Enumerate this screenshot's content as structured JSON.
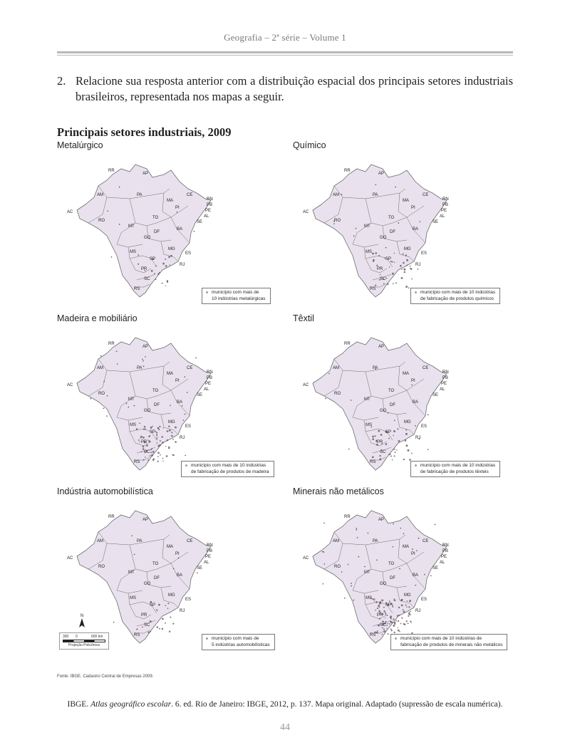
{
  "header": {
    "title": "Geografia – 2ª série – Volume 1"
  },
  "question": {
    "number": "2.",
    "text": "Relacione sua resposta anterior com a distribuição espacial dos principais setores industriais brasileiros, representada nos mapas a seguir."
  },
  "section_title": "Principais setores industriais, 2009",
  "maps": [
    {
      "title": "Metalúrgico",
      "legend_line1": "município com mais de",
      "legend_line2": "10 indústrias metalúrgicas",
      "density": 1
    },
    {
      "title": "Químico",
      "legend_line1": "município com mais de 10 indústrias",
      "legend_line2": "de fabricação de produtos químicos",
      "density": 2
    },
    {
      "title": "Madeira e mobiliário",
      "legend_line1": "município com mais de 10 indústrias",
      "legend_line2": "de fabricação de produtos de madeira",
      "density": 4
    },
    {
      "title": "Têxtil",
      "legend_line1": "município com mais de 10 indústrias",
      "legend_line2": "de fabricação de produtos têxteis",
      "density": 2
    },
    {
      "title": "Indústria automobilística",
      "legend_line1": "município com mais de",
      "legend_line2": "5 indústrias automobilísticas",
      "density": 1
    },
    {
      "title": "Minerais não metálicos",
      "legend_line1": "município com mais de 10 indústrias de",
      "legend_line2": "fabricação de produtos de minerais não metálicos",
      "density": 5
    }
  ],
  "state_labels": [
    "RR",
    "AP",
    "AM",
    "PA",
    "MA",
    "CE",
    "RN",
    "PB",
    "PE",
    "AL",
    "SE",
    "PI",
    "AC",
    "RO",
    "TO",
    "BA",
    "MT",
    "DF",
    "GO",
    "MG",
    "ES",
    "MS",
    "SP",
    "RJ",
    "PR",
    "SC",
    "RS"
  ],
  "north_arrow": "N",
  "scale_bar": {
    "left": "300",
    "mid": "0",
    "right": "600 km",
    "projection": "Projeção Policônica"
  },
  "source": "Fonte: IBGE. Cadastro Central de Empresas 2009.",
  "citation": {
    "prefix": "IBGE. ",
    "title": "Atlas geográfico escolar",
    "suffix": ". 6. ed. Rio de Janeiro: IBGE, 2012, p. 137. Mapa original. Adaptado (supressão de escala numérica)."
  },
  "page_number": "44",
  "colors": {
    "map_fill": "#e9e2ee",
    "map_stroke": "#6b6b6b",
    "dot": "#5b4a5a",
    "header_text": "#7a7a7a"
  }
}
